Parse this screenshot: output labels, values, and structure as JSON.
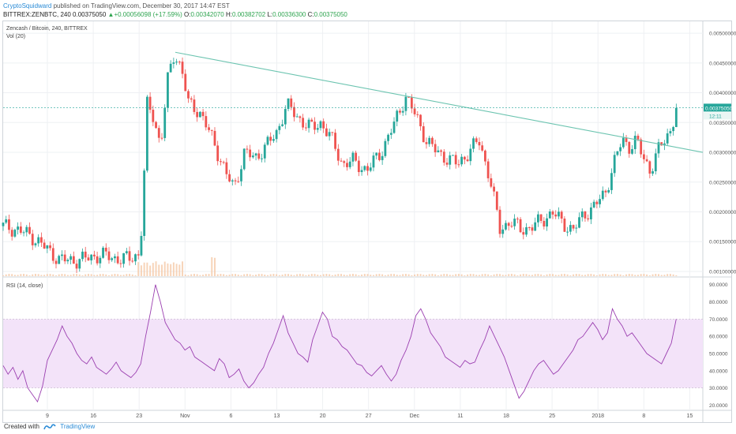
{
  "header": {
    "author": "CryptoSquidward",
    "published": "published on TradingView.com, December 30, 2017 14:47 EST",
    "symbol": "BITTREX:ZENBTC, 240",
    "price": "0.00375050",
    "change_arrow": "▲",
    "change": "+0.00056098 (+17.59%)",
    "o_label": "O:",
    "o": "0.00342070",
    "h_label": "H:",
    "h": "0.00382702",
    "l_label": "L:",
    "l": "0.00336300",
    "c_label": "C:",
    "c": "0.00375050"
  },
  "footer": {
    "created_with": "Created with",
    "brand": "TradingView"
  },
  "colors": {
    "up": "#26a69a",
    "down": "#ef5350",
    "trendline": "#6cc4b0",
    "rsi": "#9b3fb0",
    "rsi_band": "#f3e3f9",
    "volume": "#f5c9a8"
  },
  "chart_data": [
    {
      "type": "candlestick",
      "title": "Zencash / Bitcoin, 240, BITTREX",
      "volume_label": "Vol (20)",
      "current_price_label": "0.00375050",
      "countdown_label": "12:11",
      "y_ticks": [
        "0.00500000",
        "0.00450000",
        "0.00400000",
        "0.00350000",
        "0.00300000",
        "0.00250000",
        "0.00200000",
        "0.00150000",
        "0.00100000"
      ],
      "ylim": [
        0.00092,
        0.0052
      ],
      "x_ticks": [
        "9",
        "16",
        "23",
        "Nov",
        "6",
        "13",
        "20",
        "27",
        "Dec",
        "11",
        "18",
        "25",
        "2018",
        "8",
        "15"
      ],
      "trendline": [
        [
          0.246,
          0.00468
        ],
        [
          1.0,
          0.003
        ]
      ],
      "price_path": [
        [
          0.0,
          0.00176
        ],
        [
          0.02,
          0.0017
        ],
        [
          0.04,
          0.0016
        ],
        [
          0.06,
          0.0014
        ],
        [
          0.08,
          0.0012
        ],
        [
          0.1,
          0.00118
        ],
        [
          0.12,
          0.00122
        ],
        [
          0.14,
          0.00128
        ],
        [
          0.16,
          0.00122
        ],
        [
          0.18,
          0.00121
        ],
        [
          0.195,
          0.0013
        ],
        [
          0.2,
          0.0021
        ],
        [
          0.205,
          0.0038
        ],
        [
          0.215,
          0.0036
        ],
        [
          0.225,
          0.0031
        ],
        [
          0.235,
          0.0042
        ],
        [
          0.245,
          0.00468
        ],
        [
          0.255,
          0.0044
        ],
        [
          0.265,
          0.0038
        ],
        [
          0.28,
          0.0037
        ],
        [
          0.3,
          0.0032
        ],
        [
          0.31,
          0.0029
        ],
        [
          0.32,
          0.0026
        ],
        [
          0.33,
          0.0024
        ],
        [
          0.345,
          0.003
        ],
        [
          0.36,
          0.0029
        ],
        [
          0.375,
          0.0031
        ],
        [
          0.39,
          0.0033
        ],
        [
          0.405,
          0.0038
        ],
        [
          0.42,
          0.0036
        ],
        [
          0.44,
          0.0034
        ],
        [
          0.455,
          0.0035
        ],
        [
          0.47,
          0.0032
        ],
        [
          0.485,
          0.0028
        ],
        [
          0.5,
          0.00285
        ],
        [
          0.52,
          0.0027
        ],
        [
          0.54,
          0.003
        ],
        [
          0.56,
          0.0035
        ],
        [
          0.575,
          0.00395
        ],
        [
          0.59,
          0.0036
        ],
        [
          0.605,
          0.0032
        ],
        [
          0.62,
          0.003
        ],
        [
          0.635,
          0.0029
        ],
        [
          0.65,
          0.0028
        ],
        [
          0.665,
          0.003
        ],
        [
          0.68,
          0.0032
        ],
        [
          0.695,
          0.0026
        ],
        [
          0.71,
          0.0017
        ],
        [
          0.725,
          0.00185
        ],
        [
          0.74,
          0.0017
        ],
        [
          0.755,
          0.00175
        ],
        [
          0.77,
          0.00185
        ],
        [
          0.785,
          0.002
        ],
        [
          0.8,
          0.0018
        ],
        [
          0.815,
          0.0017
        ],
        [
          0.83,
          0.00195
        ],
        [
          0.845,
          0.0021
        ],
        [
          0.86,
          0.0023
        ],
        [
          0.875,
          0.0029
        ],
        [
          0.885,
          0.0032
        ],
        [
          0.895,
          0.0031
        ],
        [
          0.905,
          0.0032
        ],
        [
          0.915,
          0.0029
        ],
        [
          0.925,
          0.0027
        ],
        [
          0.935,
          0.003
        ],
        [
          0.945,
          0.0032
        ],
        [
          0.955,
          0.0034
        ],
        [
          0.962,
          0.00375
        ]
      ]
    },
    {
      "type": "line",
      "title": "RSI (14, close)",
      "y_ticks": [
        "90.0000",
        "80.0000",
        "70.0000",
        "60.0000",
        "50.0000",
        "40.0000",
        "30.0000",
        "20.0000"
      ],
      "ylim": [
        17,
        94
      ],
      "band": [
        30,
        70
      ],
      "values": [
        43,
        38,
        42,
        35,
        40,
        30,
        26,
        22,
        31,
        46,
        52,
        58,
        66,
        60,
        56,
        50,
        46,
        44,
        48,
        42,
        40,
        38,
        41,
        45,
        40,
        38,
        36,
        39,
        44,
        60,
        74,
        90,
        80,
        68,
        63,
        58,
        56,
        52,
        54,
        48,
        46,
        44,
        42,
        40,
        47,
        44,
        36,
        38,
        41,
        34,
        30,
        33,
        38,
        42,
        50,
        56,
        64,
        72,
        62,
        56,
        50,
        48,
        45,
        58,
        66,
        74,
        70,
        60,
        58,
        54,
        52,
        48,
        44,
        43,
        39,
        37,
        40,
        43,
        38,
        34,
        38,
        46,
        52,
        60,
        72,
        76,
        70,
        62,
        58,
        54,
        48,
        46,
        44,
        42,
        46,
        44,
        45,
        52,
        58,
        66,
        60,
        54,
        48,
        40,
        32,
        24,
        28,
        34,
        40,
        44,
        46,
        42,
        38,
        40,
        44,
        48,
        52,
        58,
        60,
        64,
        68,
        64,
        58,
        62,
        76,
        70,
        66,
        60,
        62,
        58,
        54,
        50,
        48,
        46,
        44,
        50,
        56,
        70
      ]
    }
  ]
}
